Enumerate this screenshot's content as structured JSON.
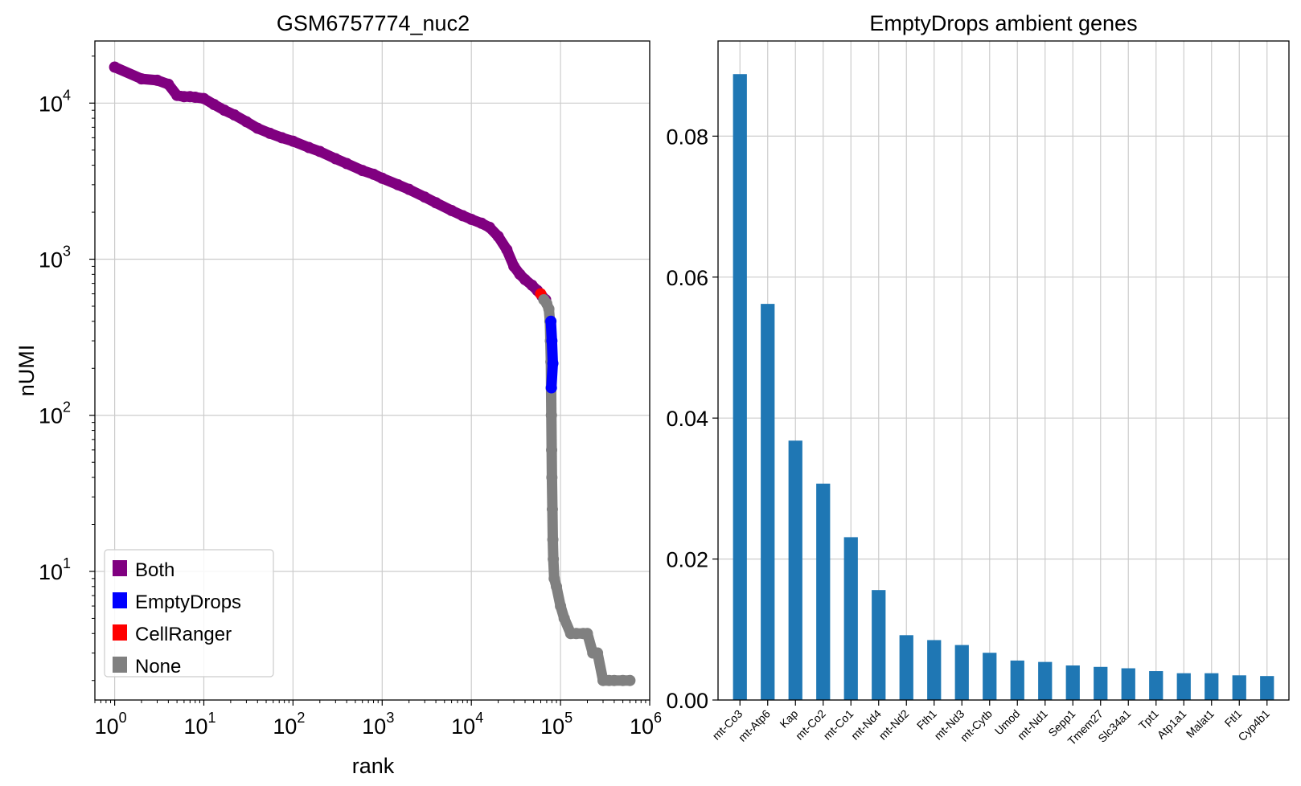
{
  "chart_data": [
    {
      "type": "scatter",
      "title": "GSM6757774_nuc2",
      "xlabel": "rank",
      "ylabel": "nUMI",
      "xscale": "log",
      "yscale": "log",
      "xlim": [
        0.6,
        1000000
      ],
      "ylim": [
        1.5,
        25000
      ],
      "x_tick_labels": [
        {
          "base": "10",
          "exp": "0"
        },
        {
          "base": "10",
          "exp": "1"
        },
        {
          "base": "10",
          "exp": "2"
        },
        {
          "base": "10",
          "exp": "3"
        },
        {
          "base": "10",
          "exp": "4"
        },
        {
          "base": "10",
          "exp": "5"
        },
        {
          "base": "10",
          "exp": "6"
        }
      ],
      "y_tick_labels": [
        {
          "base": "10",
          "exp": "1"
        },
        {
          "base": "10",
          "exp": "2"
        },
        {
          "base": "10",
          "exp": "3"
        },
        {
          "base": "10",
          "exp": "4"
        }
      ],
      "grid": true,
      "legend_position": "lower-left",
      "legend": [
        {
          "label": "Both",
          "color": "#800080"
        },
        {
          "label": "EmptyDrops",
          "color": "#0000ff"
        },
        {
          "label": "CellRanger",
          "color": "#ff0000"
        },
        {
          "label": "None",
          "color": "#808080"
        }
      ],
      "series": [
        {
          "name": "Both",
          "color": "#800080",
          "points": [
            [
              1,
              17000
            ],
            [
              2,
              14300
            ],
            [
              3,
              14000
            ],
            [
              4,
              13200
            ],
            [
              5,
              11200
            ],
            [
              6,
              11000
            ],
            [
              7,
              11000
            ],
            [
              8,
              10900
            ],
            [
              10,
              10700
            ],
            [
              13,
              9800
            ],
            [
              17,
              9000
            ],
            [
              22,
              8400
            ],
            [
              30,
              7600
            ],
            [
              40,
              6900
            ],
            [
              55,
              6400
            ],
            [
              75,
              6000
            ],
            [
              100,
              5700
            ],
            [
              150,
              5200
            ],
            [
              200,
              4900
            ],
            [
              300,
              4400
            ],
            [
              400,
              4100
            ],
            [
              600,
              3700
            ],
            [
              800,
              3500
            ],
            [
              1000,
              3300
            ],
            [
              1500,
              3000
            ],
            [
              2000,
              2800
            ],
            [
              3000,
              2500
            ],
            [
              4000,
              2300
            ],
            [
              6000,
              2050
            ],
            [
              8000,
              1900
            ],
            [
              10000,
              1800
            ],
            [
              13000,
              1700
            ],
            [
              16000,
              1600
            ],
            [
              20000,
              1400
            ],
            [
              25000,
              1150
            ],
            [
              30000,
              900
            ],
            [
              35000,
              800
            ],
            [
              40000,
              740
            ],
            [
              48000,
              680
            ],
            [
              55000,
              630
            ],
            [
              62000,
              580
            ],
            [
              68000,
              550
            ]
          ]
        },
        {
          "name": "EmptyDrops",
          "color": "#0000ff",
          "points": [
            [
              78000,
              400
            ],
            [
              80000,
              300
            ],
            [
              82000,
              215
            ],
            [
              79000,
              150
            ]
          ]
        },
        {
          "name": "CellRanger",
          "color": "#ff0000",
          "points": [
            [
              60000,
              600
            ]
          ]
        },
        {
          "name": "None",
          "color": "#808080",
          "points": [
            [
              65000,
              550
            ],
            [
              70000,
              520
            ],
            [
              74000,
              480
            ],
            [
              76000,
              400
            ],
            [
              77000,
              300
            ],
            [
              78000,
              220
            ],
            [
              78500,
              150
            ],
            [
              79000,
              100
            ],
            [
              79500,
              60
            ],
            [
              80000,
              40
            ],
            [
              81000,
              25
            ],
            [
              82000,
              16
            ],
            [
              83000,
              12
            ],
            [
              85000,
              9
            ],
            [
              90000,
              8
            ],
            [
              100000,
              6
            ],
            [
              110000,
              5
            ],
            [
              130000,
              4
            ],
            [
              150000,
              4
            ],
            [
              180000,
              4
            ],
            [
              200000,
              4
            ],
            [
              230000,
              3
            ],
            [
              260000,
              3
            ],
            [
              300000,
              2
            ],
            [
              350000,
              2
            ],
            [
              400000,
              2
            ],
            [
              500000,
              2
            ],
            [
              600000,
              2
            ]
          ]
        }
      ]
    },
    {
      "type": "bar",
      "title": "EmptyDrops ambient genes",
      "xlabel": "",
      "ylabel": "",
      "ylim": [
        0,
        0.0935
      ],
      "yticks": [
        "0.00",
        "0.02",
        "0.04",
        "0.06",
        "0.08"
      ],
      "grid": true,
      "bar_color": "#1f77b4",
      "categories": [
        "mt-Co3",
        "mt-Atp6",
        "Kap",
        "mt-Co2",
        "mt-Co1",
        "mt-Nd4",
        "mt-Nd2",
        "Fth1",
        "mt-Nd3",
        "mt-Cytb",
        "Umod",
        "mt-Nd1",
        "Sepp1",
        "Tmem27",
        "Slc34a1",
        "Tpt1",
        "Atp1a1",
        "Malat1",
        "Ftl1",
        "Cyp4b1"
      ],
      "values": [
        0.0888,
        0.0562,
        0.0368,
        0.0307,
        0.0231,
        0.0156,
        0.0092,
        0.0085,
        0.0078,
        0.0067,
        0.0056,
        0.0054,
        0.0049,
        0.0047,
        0.0045,
        0.0041,
        0.0038,
        0.0038,
        0.0035,
        0.0034
      ]
    }
  ]
}
